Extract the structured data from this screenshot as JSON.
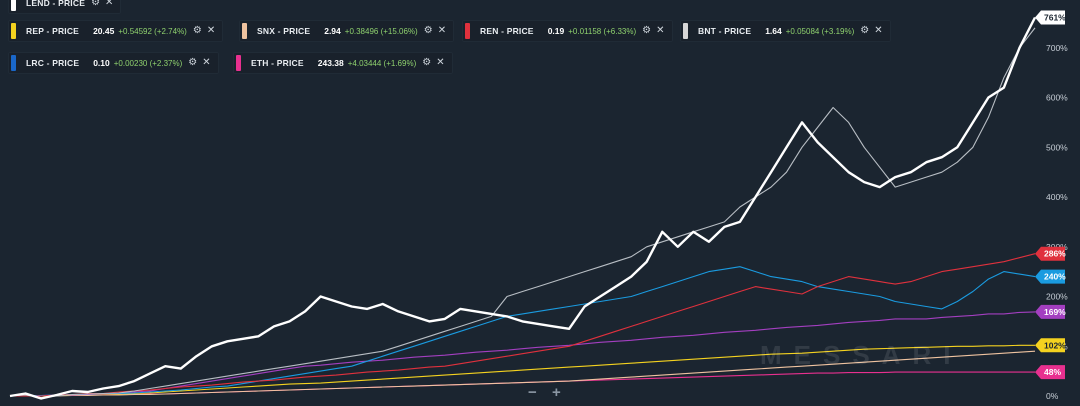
{
  "chart_data": {
    "type": "line",
    "title": "",
    "xlabel": "",
    "ylabel": "",
    "ylim": [
      0,
      780
    ],
    "y_axis_side": "right",
    "y_ticks": [
      "0%",
      "100%",
      "200%",
      "300%",
      "400%",
      "500%",
      "600%",
      "700%"
    ],
    "grid": false,
    "legend_position": "top-left",
    "series": [
      {
        "name": "LEND - PRICE",
        "color": "#ffffff",
        "end_label": "761%",
        "values": [
          0,
          5,
          -5,
          2,
          10,
          8,
          15,
          20,
          30,
          45,
          60,
          55,
          80,
          100,
          110,
          115,
          120,
          140,
          150,
          170,
          200,
          190,
          180,
          175,
          185,
          170,
          160,
          150,
          155,
          175,
          170,
          165,
          160,
          150,
          145,
          140,
          135,
          180,
          200,
          220,
          240,
          270,
          330,
          300,
          330,
          310,
          340,
          350,
          400,
          450,
          500,
          550,
          510,
          480,
          450,
          430,
          420,
          440,
          450,
          470,
          480,
          500,
          550,
          600,
          620,
          700,
          761
        ]
      },
      {
        "name": "BNT - PRICE",
        "color": "#b8bec4",
        "end_label": "",
        "values": [
          0,
          2,
          -3,
          0,
          3,
          4,
          5,
          6,
          10,
          15,
          20,
          25,
          30,
          35,
          40,
          45,
          50,
          55,
          60,
          65,
          70,
          75,
          80,
          85,
          90,
          100,
          110,
          120,
          130,
          140,
          150,
          160,
          200,
          210,
          220,
          230,
          240,
          250,
          260,
          270,
          280,
          300,
          310,
          320,
          330,
          340,
          350,
          380,
          400,
          420,
          450,
          500,
          540,
          580,
          550,
          500,
          460,
          420,
          430,
          440,
          450,
          470,
          500,
          560,
          640,
          700,
          740
        ]
      },
      {
        "name": "REN - PRICE",
        "color": "#e0313d",
        "end_label": "286%",
        "values": [
          0,
          0,
          0,
          2,
          3,
          5,
          5,
          8,
          10,
          12,
          15,
          18,
          20,
          22,
          25,
          28,
          30,
          32,
          35,
          38,
          40,
          42,
          45,
          48,
          50,
          52,
          55,
          58,
          60,
          65,
          70,
          75,
          80,
          85,
          90,
          95,
          100,
          110,
          120,
          130,
          140,
          150,
          160,
          170,
          180,
          190,
          200,
          210,
          220,
          215,
          210,
          205,
          220,
          230,
          240,
          235,
          230,
          225,
          230,
          240,
          250,
          255,
          260,
          265,
          270,
          278,
          286
        ]
      },
      {
        "name": "LRC - PRICE",
        "color": "#1a9be0",
        "end_label": "240%",
        "values": [
          0,
          0,
          1,
          2,
          3,
          4,
          5,
          5,
          6,
          8,
          10,
          12,
          15,
          18,
          20,
          25,
          30,
          35,
          40,
          45,
          50,
          55,
          60,
          70,
          80,
          90,
          100,
          110,
          120,
          130,
          140,
          150,
          160,
          165,
          170,
          175,
          180,
          185,
          190,
          195,
          200,
          210,
          220,
          230,
          240,
          250,
          255,
          260,
          250,
          240,
          235,
          230,
          220,
          215,
          210,
          205,
          200,
          190,
          185,
          180,
          175,
          190,
          210,
          235,
          250,
          245,
          240
        ]
      },
      {
        "name": "ETH - PRICE",
        "color": "#a33fc0",
        "end_label": "169%",
        "values": [
          0,
          0,
          1,
          2,
          2,
          3,
          4,
          5,
          8,
          10,
          15,
          20,
          25,
          30,
          35,
          40,
          45,
          50,
          55,
          60,
          62,
          65,
          68,
          70,
          72,
          75,
          78,
          80,
          82,
          85,
          88,
          90,
          92,
          95,
          98,
          100,
          102,
          105,
          108,
          110,
          112,
          115,
          118,
          120,
          122,
          125,
          128,
          130,
          132,
          135,
          138,
          140,
          142,
          145,
          148,
          150,
          152,
          155,
          155,
          155,
          158,
          160,
          162,
          165,
          165,
          168,
          169
        ]
      },
      {
        "name": "REP - PRICE",
        "color": "#f4d21f",
        "end_label": "102%",
        "values": [
          0,
          0,
          0,
          1,
          2,
          3,
          3,
          4,
          5,
          6,
          8,
          10,
          12,
          14,
          16,
          18,
          20,
          22,
          24,
          25,
          26,
          28,
          30,
          32,
          34,
          36,
          38,
          40,
          42,
          44,
          46,
          48,
          50,
          52,
          54,
          56,
          58,
          60,
          62,
          64,
          66,
          68,
          70,
          72,
          74,
          76,
          78,
          80,
          82,
          84,
          85,
          86,
          88,
          90,
          92,
          94,
          95,
          96,
          97,
          98,
          99,
          100,
          100,
          101,
          101,
          102,
          102
        ]
      },
      {
        "name": "SNX - PRICE",
        "color": "#efc3a0",
        "end_label": "",
        "values": [
          0,
          0,
          0,
          0,
          1,
          1,
          2,
          2,
          3,
          3,
          4,
          5,
          6,
          7,
          8,
          9,
          10,
          11,
          12,
          13,
          14,
          15,
          16,
          17,
          18,
          19,
          20,
          21,
          22,
          23,
          24,
          25,
          26,
          27,
          28,
          29,
          30,
          32,
          34,
          36,
          38,
          40,
          42,
          44,
          46,
          48,
          50,
          52,
          54,
          56,
          58,
          60,
          62,
          64,
          66,
          68,
          70,
          72,
          74,
          76,
          78,
          80,
          82,
          84,
          86,
          88,
          90
        ]
      },
      {
        "name": "ETH - PRICE 2",
        "color": "#e8308f",
        "end_label": "48%",
        "values": [
          0,
          0,
          0,
          1,
          1,
          2,
          2,
          3,
          3,
          4,
          4,
          5,
          6,
          7,
          8,
          9,
          10,
          11,
          12,
          13,
          14,
          15,
          16,
          17,
          18,
          19,
          20,
          21,
          22,
          23,
          24,
          25,
          26,
          27,
          28,
          29,
          30,
          31,
          32,
          33,
          34,
          35,
          36,
          37,
          38,
          39,
          40,
          41,
          42,
          43,
          44,
          45,
          46,
          46,
          47,
          47,
          47,
          48,
          48,
          48,
          48,
          48,
          48,
          48,
          48,
          48,
          48
        ]
      }
    ]
  },
  "legend": [
    {
      "name": "LEND - PRICE",
      "value": "",
      "change": "",
      "color": "#ffffff"
    },
    {
      "name": "REP - PRICE",
      "value": "20.45",
      "change": "+0.54592 (+2.74%)",
      "color": "#f4d21f"
    },
    {
      "name": "SNX - PRICE",
      "value": "2.94",
      "change": "+0.38496 (+15.06%)",
      "color": "#efc3a0"
    },
    {
      "name": "REN - PRICE",
      "value": "0.19",
      "change": "+0.01158 (+6.33%)",
      "color": "#e0313d"
    },
    {
      "name": "BNT - PRICE",
      "value": "1.64",
      "change": "+0.05084 (+3.19%)",
      "color": "#d7d7d7"
    },
    {
      "name": "LRC - PRICE",
      "value": "0.10",
      "change": "+0.00230 (+2.37%)",
      "color": "#1a67c9"
    },
    {
      "name": "ETH - PRICE",
      "value": "243.38",
      "change": "+4.03444 (+1.69%)",
      "color": "#e8308f"
    }
  ],
  "watermark": "MESSARI",
  "controls": {
    "zoom_out": "−",
    "zoom_in": "+"
  },
  "icons": {
    "settings": "gear-icon",
    "close": "close-icon"
  }
}
